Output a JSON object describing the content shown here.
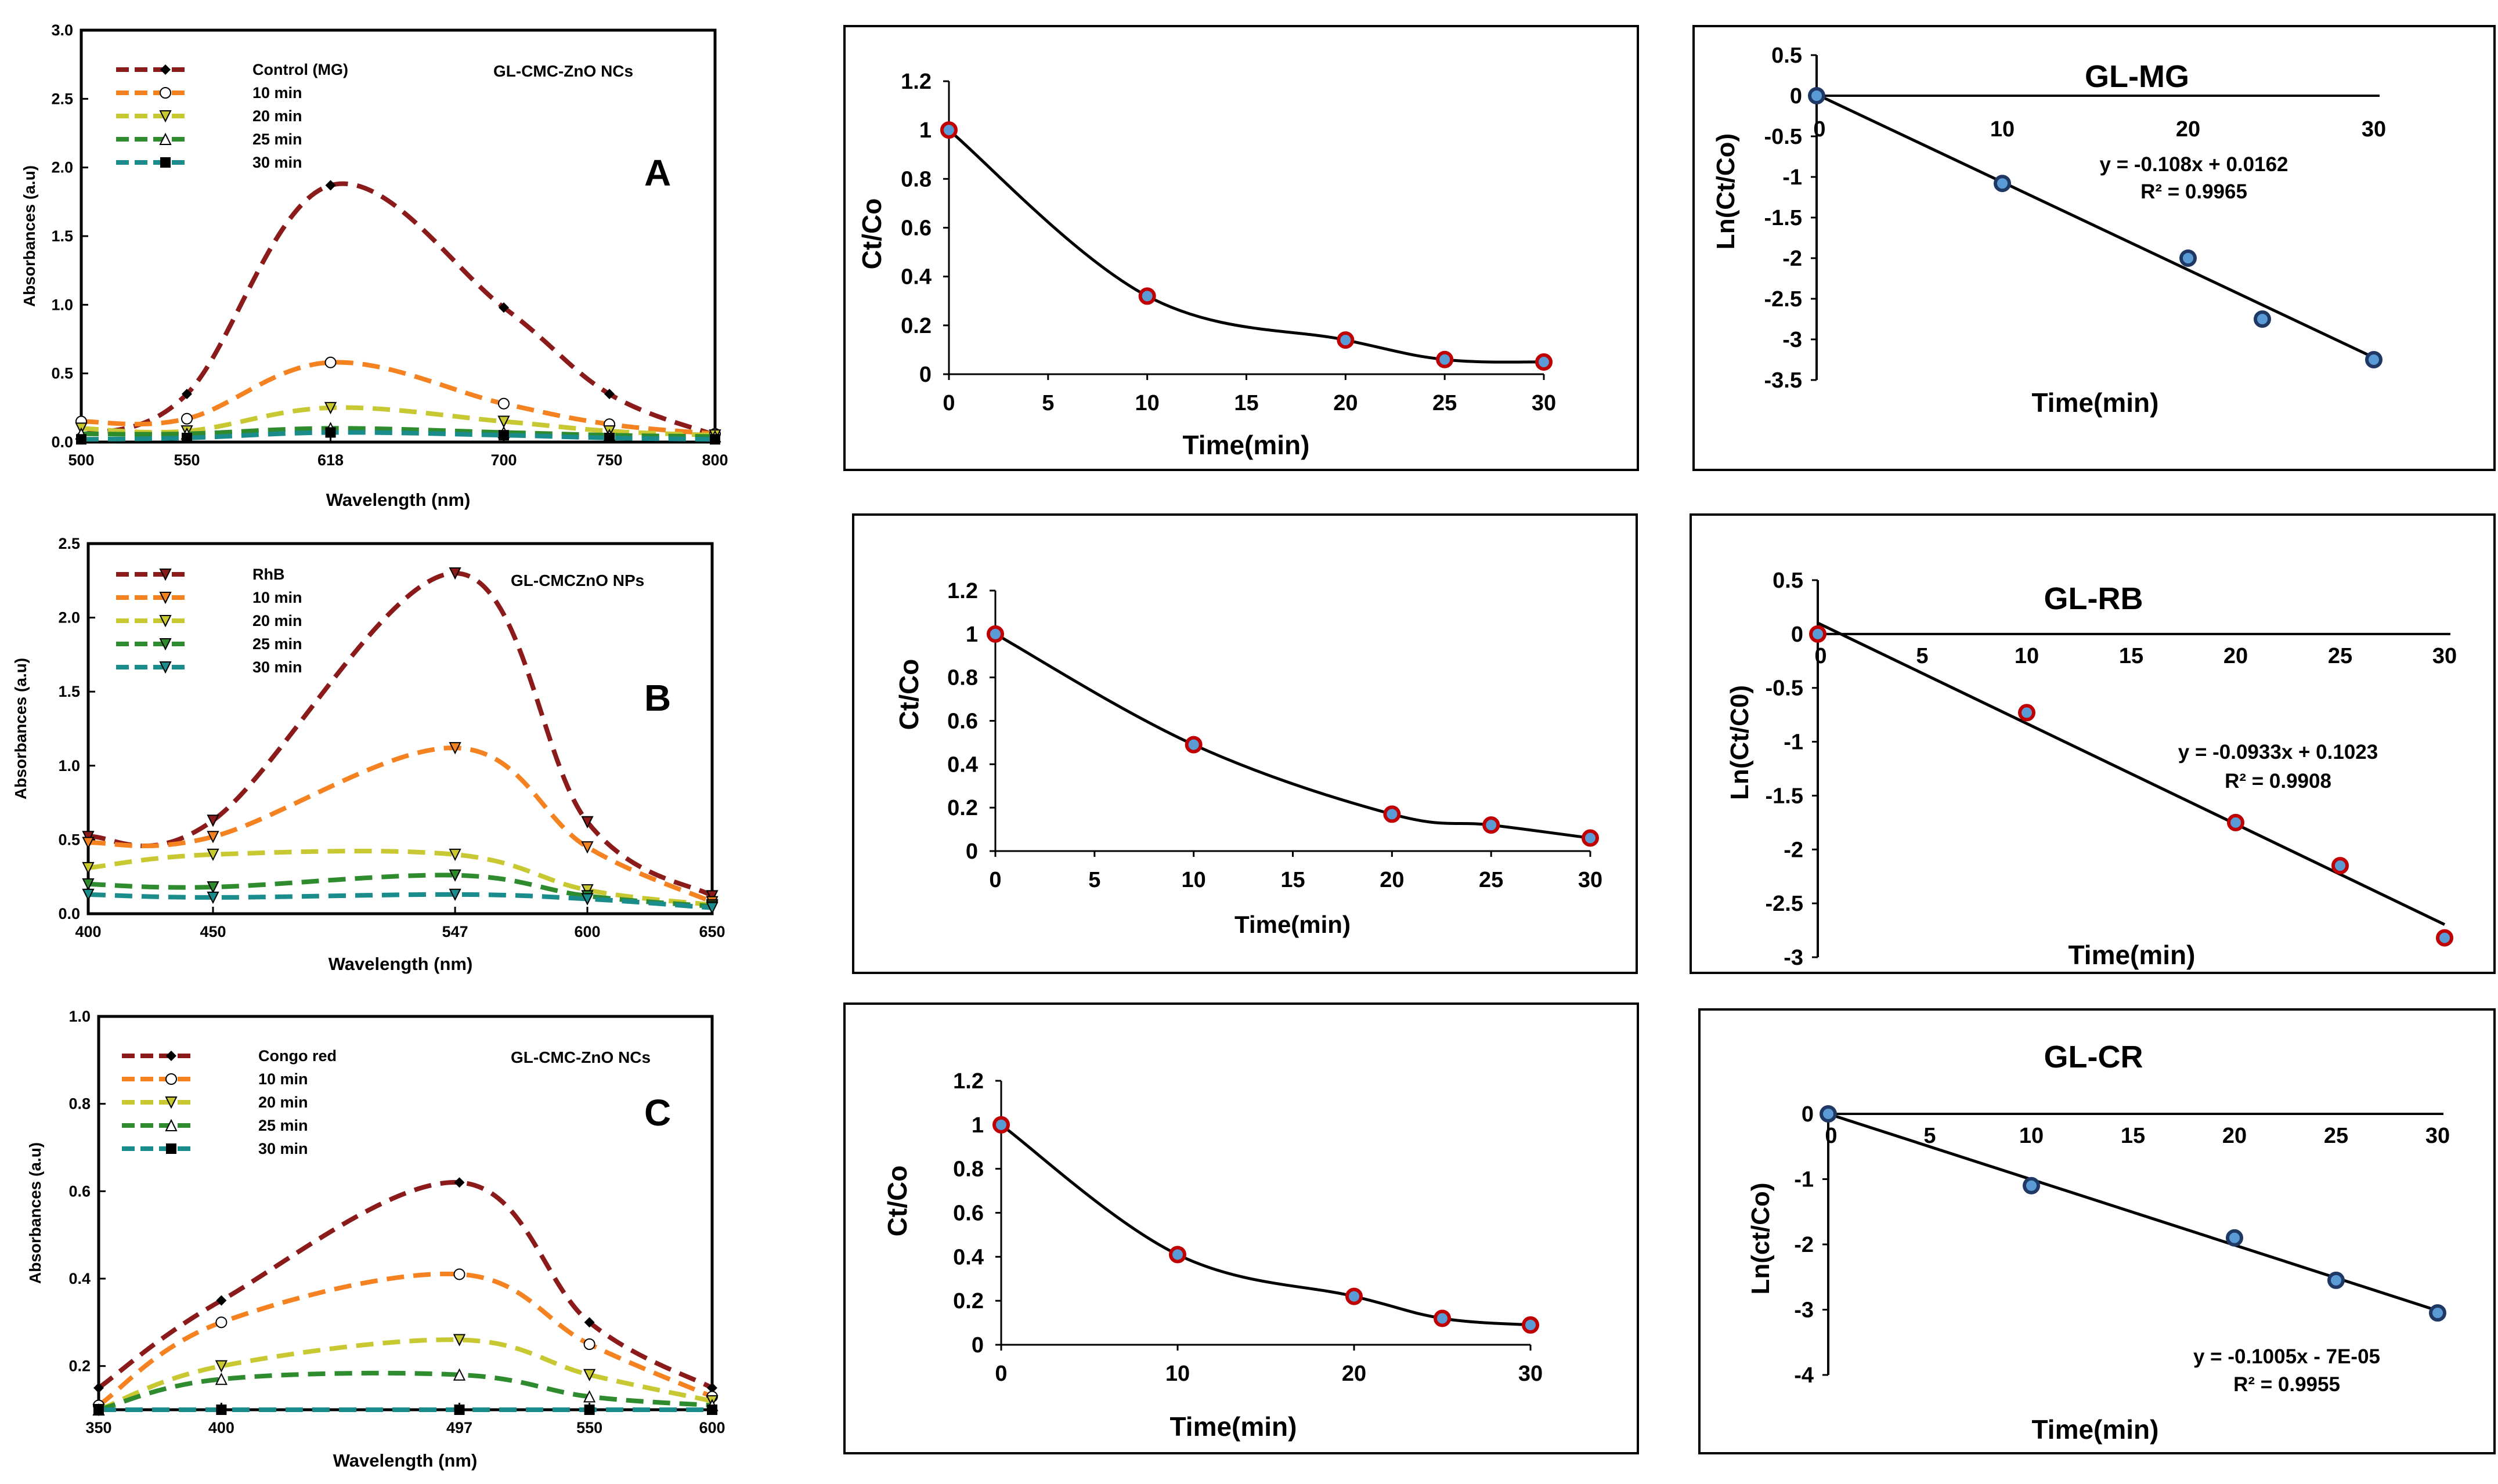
{
  "spectra": [
    {
      "title": "GL-CMC-ZnO NCs",
      "panel_label": "A",
      "xlabel": "Wavelength (nm)",
      "ylabel": "Absorbances (a.u)",
      "xlim": [
        500,
        800
      ],
      "ylim": [
        0,
        3.0
      ],
      "xticks": [
        500,
        550,
        618,
        700,
        750,
        800
      ],
      "yticks": [
        0,
        0.5,
        1.0,
        1.5,
        2.0,
        2.5,
        3.0
      ],
      "ytick_labels": [
        "0.0",
        "0.5",
        "1.0",
        "1.5",
        "2.0",
        "2.5",
        "3.0"
      ],
      "series": [
        {
          "name": "Control (MG)",
          "color": "#8B1A1A",
          "marker": "diamond",
          "x": [
            500,
            550,
            618,
            700,
            750,
            800
          ],
          "y": [
            0.05,
            0.35,
            1.87,
            0.98,
            0.35,
            0.05
          ]
        },
        {
          "name": "10 min",
          "color": "#F58220",
          "marker": "circle",
          "x": [
            500,
            550,
            618,
            700,
            750,
            800
          ],
          "y": [
            0.15,
            0.17,
            0.58,
            0.28,
            0.13,
            0.06
          ]
        },
        {
          "name": "20 min",
          "color": "#C8C832",
          "marker": "triangle-down",
          "x": [
            500,
            550,
            618,
            700,
            750,
            800
          ],
          "y": [
            0.1,
            0.08,
            0.25,
            0.15,
            0.08,
            0.05
          ]
        },
        {
          "name": "25 min",
          "color": "#2E8B2E",
          "marker": "triangle-up",
          "x": [
            500,
            550,
            618,
            700,
            750,
            800
          ],
          "y": [
            0.06,
            0.06,
            0.1,
            0.07,
            0.05,
            0.04
          ]
        },
        {
          "name": "30 min",
          "color": "#1A8C8C",
          "marker": "square",
          "x": [
            500,
            550,
            618,
            700,
            750,
            800
          ],
          "y": [
            0.02,
            0.03,
            0.07,
            0.05,
            0.03,
            0.02
          ]
        }
      ]
    },
    {
      "title": "GL-CMCZnO NPs",
      "panel_label": "B",
      "xlabel": "Wavelength (nm)",
      "ylabel": "Absorbances (a.u)",
      "xlim": [
        400,
        650
      ],
      "ylim": [
        0,
        2.5
      ],
      "xticks": [
        400,
        450,
        547,
        600,
        650
      ],
      "yticks": [
        0,
        0.5,
        1.0,
        1.5,
        2.0,
        2.5
      ],
      "ytick_labels": [
        "0.0",
        "0.5",
        "1.0",
        "1.5",
        "2.0",
        "2.5"
      ],
      "series": [
        {
          "name": "RhB",
          "color": "#8B1A1A",
          "marker": "triangle-down",
          "x": [
            400,
            450,
            547,
            600,
            650
          ],
          "y": [
            0.52,
            0.63,
            2.3,
            0.62,
            0.12
          ]
        },
        {
          "name": "10 min",
          "color": "#F58220",
          "marker": "triangle-down",
          "x": [
            400,
            450,
            547,
            600,
            650
          ],
          "y": [
            0.48,
            0.52,
            1.12,
            0.45,
            0.08
          ]
        },
        {
          "name": "20 min",
          "color": "#C8C832",
          "marker": "triangle-down",
          "x": [
            400,
            450,
            547,
            600,
            650
          ],
          "y": [
            0.31,
            0.4,
            0.4,
            0.16,
            0.06
          ]
        },
        {
          "name": "25 min",
          "color": "#2E8B2E",
          "marker": "triangle-down",
          "x": [
            400,
            450,
            547,
            600,
            650
          ],
          "y": [
            0.2,
            0.18,
            0.26,
            0.12,
            0.05
          ]
        },
        {
          "name": "30 min",
          "color": "#1A8C8C",
          "marker": "triangle-down",
          "x": [
            400,
            450,
            547,
            600,
            650
          ],
          "y": [
            0.13,
            0.11,
            0.13,
            0.1,
            0.04
          ]
        }
      ]
    },
    {
      "title": "GL-CMC-ZnO NCs",
      "panel_label": "C",
      "xlabel": "Wavelength (nm)",
      "ylabel": "Absorbances (a.u)",
      "xlim": [
        350,
        600
      ],
      "ylim": [
        0.1,
        1.0
      ],
      "xticks": [
        350,
        400,
        497,
        550,
        600
      ],
      "yticks": [
        0.2,
        0.4,
        0.6,
        0.8,
        1.0
      ],
      "ytick_labels": [
        "0.2",
        "0.4",
        "0.6",
        "0.8",
        "1.0"
      ],
      "series": [
        {
          "name": "Congo red",
          "color": "#8B1A1A",
          "marker": "diamond",
          "x": [
            350,
            400,
            497,
            550,
            600
          ],
          "y": [
            0.15,
            0.35,
            0.62,
            0.3,
            0.15
          ]
        },
        {
          "name": "10 min",
          "color": "#F58220",
          "marker": "circle",
          "x": [
            350,
            400,
            497,
            550,
            600
          ],
          "y": [
            0.11,
            0.3,
            0.41,
            0.25,
            0.13
          ]
        },
        {
          "name": "20 min",
          "color": "#C8C832",
          "marker": "triangle-down",
          "x": [
            350,
            400,
            497,
            550,
            600
          ],
          "y": [
            0.1,
            0.2,
            0.26,
            0.18,
            0.12
          ]
        },
        {
          "name": "25 min",
          "color": "#2E8B2E",
          "marker": "triangle-up",
          "x": [
            350,
            400,
            497,
            550,
            600
          ],
          "y": [
            0.1,
            0.17,
            0.18,
            0.13,
            0.11
          ]
        },
        {
          "name": "30 min",
          "color": "#1A8C8C",
          "marker": "square",
          "x": [
            350,
            400,
            497,
            550,
            600
          ],
          "y": [
            0.1,
            0.1,
            0.1,
            0.1,
            0.1
          ]
        }
      ]
    }
  ],
  "kinetics": [
    {
      "xlabel": "Time(min)",
      "ylabel": "Ct/Co",
      "xlim": [
        0,
        30
      ],
      "ylim": [
        0,
        1.2
      ],
      "xticks": [
        0,
        5,
        10,
        15,
        20,
        25,
        30
      ],
      "yticks": [
        0,
        0.2,
        0.4,
        0.6,
        0.8,
        1,
        1.2
      ],
      "x": [
        0,
        10,
        20,
        25,
        30
      ],
      "y": [
        1.0,
        0.32,
        0.14,
        0.06,
        0.05
      ]
    },
    {
      "xlabel": "Time(min)",
      "ylabel": "Ct/Co",
      "xlim": [
        0,
        30
      ],
      "ylim": [
        0,
        1.2
      ],
      "xticks": [
        0,
        5,
        10,
        15,
        20,
        25,
        30
      ],
      "yticks": [
        0,
        0.2,
        0.4,
        0.6,
        0.8,
        1,
        1.2
      ],
      "x": [
        0,
        10,
        20,
        25,
        30
      ],
      "y": [
        1.0,
        0.49,
        0.17,
        0.12,
        0.06
      ]
    },
    {
      "xlabel": "Time(min)",
      "ylabel": "Ct/Co",
      "xlim": [
        0,
        30
      ],
      "ylim": [
        0,
        1.2
      ],
      "xticks": [
        0,
        10,
        20,
        30
      ],
      "yticks": [
        0,
        0.2,
        0.4,
        0.6,
        0.8,
        1,
        1.2
      ],
      "x": [
        0,
        10,
        20,
        25,
        30
      ],
      "y": [
        1.0,
        0.41,
        0.22,
        0.12,
        0.09
      ]
    }
  ],
  "linear_fits": [
    {
      "title": "GL-MG",
      "xlabel": "Time(min)",
      "ylabel": "Ln(Ct/Co)",
      "xlim": [
        0,
        30
      ],
      "ylim": [
        -3.5,
        0.5
      ],
      "xticks": [
        0,
        10,
        20,
        30
      ],
      "yticks": [
        -3.5,
        -3,
        -2.5,
        -2,
        -1.5,
        -1,
        -0.5,
        0,
        0.5
      ],
      "x": [
        0,
        10,
        20,
        24,
        30
      ],
      "y": [
        0,
        -1.08,
        -2.0,
        -2.75,
        -3.25
      ],
      "slope": -0.108,
      "intercept": 0.0162,
      "equation": "y = -0.108x + 0.0162",
      "r2": "R² = 0.9965"
    },
    {
      "title": "GL-RB",
      "xlabel": "Time(min)",
      "ylabel": "Ln(Ct/C0)",
      "xlim": [
        0,
        30
      ],
      "ylim": [
        -3,
        0.5
      ],
      "xticks": [
        0,
        5,
        10,
        15,
        20,
        25,
        30
      ],
      "yticks": [
        -3,
        -2.5,
        -2,
        -1.5,
        -1,
        -0.5,
        0,
        0.5
      ],
      "x": [
        0,
        10,
        20,
        25,
        30
      ],
      "y": [
        0,
        -0.73,
        -1.75,
        -2.15,
        -2.82
      ],
      "slope": -0.0933,
      "intercept": 0.1023,
      "equation": "y = -0.0933x + 0.1023",
      "r2": "R² = 0.9908"
    },
    {
      "title": "GL-CR",
      "xlabel": "Time(min)",
      "ylabel": "Ln(ct/Co)",
      "xlim": [
        0,
        30
      ],
      "ylim": [
        -4,
        0
      ],
      "xticks": [
        0,
        5,
        10,
        15,
        20,
        25,
        30
      ],
      "yticks": [
        -4,
        -3,
        -2,
        -1,
        0
      ],
      "x": [
        0,
        10,
        20,
        25,
        30
      ],
      "y": [
        0,
        -1.1,
        -1.9,
        -2.55,
        -3.05
      ],
      "slope": -0.1005,
      "intercept": -7e-05,
      "equation": "y = -0.1005x - 7E-05",
      "r2": "R² = 0.9955"
    }
  ]
}
